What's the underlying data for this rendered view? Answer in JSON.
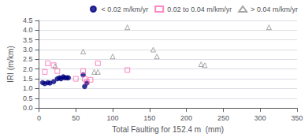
{
  "chart_data": {
    "type": "scatter",
    "xlabel": "Total Faulting for 152.4 m  (mm)",
    "ylabel": "IRI (m/km)",
    "xlim": [
      0,
      350
    ],
    "ylim": [
      0.0,
      4.5
    ],
    "xticks": [
      0,
      50,
      100,
      150,
      200,
      250,
      300,
      350
    ],
    "yticks": [
      {
        "value": 0.0,
        "label": "0.0"
      },
      0.5,
      {
        "value": 1.0,
        "label": "1.0"
      },
      1.5,
      {
        "value": 2.0,
        "label": "2.0"
      },
      2.5,
      {
        "value": 3.0,
        "label": "3.0"
      },
      3.5,
      {
        "value": 4.0,
        "label": "4.0"
      },
      4.5
    ],
    "grid": true,
    "legend": "upper right",
    "series": [
      {
        "name": "< 0.02 m/km/yr",
        "color": "#000080",
        "marker": "circle",
        "values": [
          [
            5,
            1.3
          ],
          [
            8,
            1.25
          ],
          [
            12,
            1.3
          ],
          [
            15,
            1.28
          ],
          [
            20,
            1.35
          ],
          [
            25,
            1.5
          ],
          [
            28,
            1.55
          ],
          [
            30,
            1.5
          ],
          [
            33,
            1.6
          ],
          [
            35,
            1.55
          ],
          [
            38,
            1.55
          ],
          [
            40,
            1.55
          ],
          [
            60,
            1.7
          ],
          [
            62,
            1.1
          ],
          [
            65,
            1.28
          ]
        ]
      },
      {
        "name": "0.02 to 0.04 m/km/yr",
        "color": "#FF69B4",
        "marker": "open_square",
        "values": [
          [
            8,
            1.85
          ],
          [
            12,
            2.3
          ],
          [
            20,
            2.2
          ],
          [
            25,
            1.9
          ],
          [
            50,
            1.5
          ],
          [
            60,
            1.9
          ],
          [
            62,
            1.5
          ],
          [
            65,
            1.35
          ],
          [
            70,
            1.45
          ],
          [
            80,
            2.3
          ],
          [
            120,
            1.95
          ]
        ]
      },
      {
        "name": "> 0.04 m/km/yr",
        "color": "#909090",
        "marker": "open_triangle",
        "values": [
          [
            22,
            2.15
          ],
          [
            60,
            2.9
          ],
          [
            75,
            1.85
          ],
          [
            80,
            1.85
          ],
          [
            100,
            2.65
          ],
          [
            120,
            4.15
          ],
          [
            155,
            3.0
          ],
          [
            160,
            2.65
          ],
          [
            220,
            2.25
          ],
          [
            225,
            2.2
          ],
          [
            312,
            4.15
          ]
        ]
      }
    ]
  }
}
